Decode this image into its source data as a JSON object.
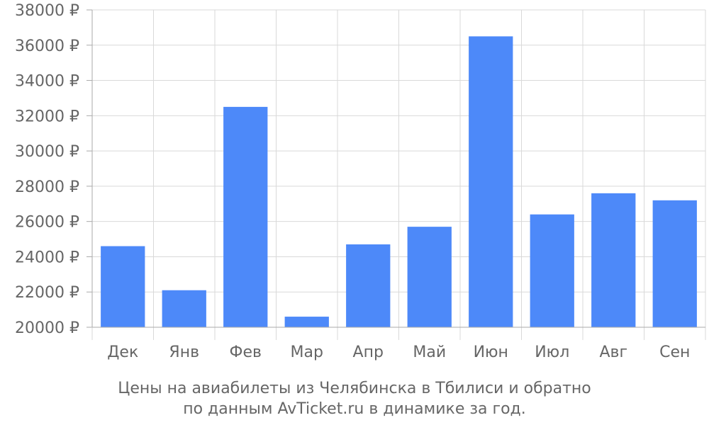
{
  "caption": {
    "line1": "Цены на авиабилеты из Челябинска в Тбилиси и обратно",
    "line2": "по данным AvTicket.ru в динамике за год."
  },
  "colors": {
    "bar": "#4d89f9",
    "grid": "#d9d9d9",
    "axis": "#aaaaaa",
    "text": "#666666"
  },
  "chart_data": {
    "type": "bar",
    "categories": [
      "Дек",
      "Янв",
      "Фев",
      "Мар",
      "Апр",
      "Май",
      "Июн",
      "Июл",
      "Авг",
      "Сен"
    ],
    "values": [
      24600,
      22100,
      32500,
      20600,
      24700,
      25700,
      36500,
      26400,
      27600,
      27200
    ],
    "ylim": [
      20000,
      38000
    ],
    "yticks": [
      20000,
      22000,
      24000,
      26000,
      28000,
      30000,
      32000,
      34000,
      36000,
      38000
    ],
    "ytick_labels": [
      "20000 ₽",
      "22000 ₽",
      "24000 ₽",
      "26000 ₽",
      "28000 ₽",
      "30000 ₽",
      "32000 ₽",
      "34000 ₽",
      "36000 ₽",
      "38000 ₽"
    ],
    "grid": true,
    "title": "",
    "xlabel": "",
    "ylabel": ""
  }
}
